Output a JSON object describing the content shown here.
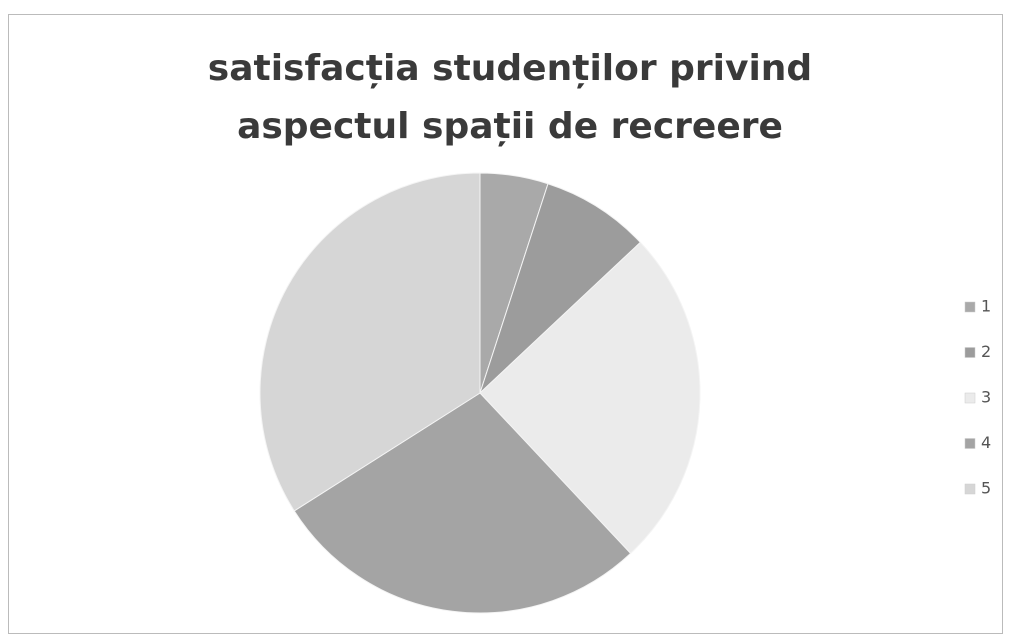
{
  "chart_data": {
    "type": "pie",
    "title": "satisfacția studenților privind aspectul spații de recreere",
    "categories": [
      "1",
      "2",
      "3",
      "4",
      "5"
    ],
    "values": [
      5,
      8,
      25,
      28,
      34
    ],
    "colors": [
      "#a9a9a9",
      "#9c9c9c",
      "#ebebeb",
      "#a4a4a4",
      "#d6d6d6"
    ],
    "legend": "right"
  }
}
